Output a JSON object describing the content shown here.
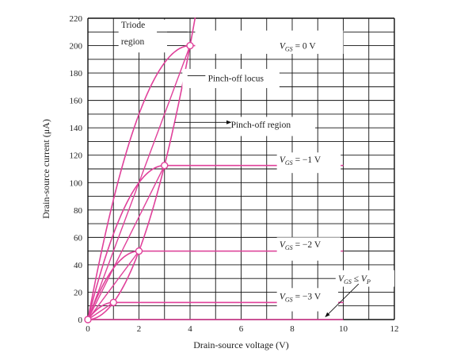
{
  "chart_data": {
    "type": "line",
    "xlabel": "Drain-source voltage (V)",
    "ylabel": "Drain-source current (μA)",
    "xlim": [
      0,
      12
    ],
    "ylim": [
      0,
      220
    ],
    "xticks": [
      0,
      2,
      4,
      6,
      8,
      10,
      12
    ],
    "yticks": [
      0,
      20,
      40,
      60,
      80,
      100,
      120,
      140,
      160,
      180,
      200,
      220
    ],
    "grid": true,
    "colors": {
      "curve": "#e0409a",
      "grid": "#111111",
      "axis": "#111111"
    },
    "series": [
      {
        "label": "V",
        "subscript": "GS",
        "rest": " = 0 V",
        "vp": 4,
        "isat": 200,
        "xmax": 10
      },
      {
        "label": "V",
        "subscript": "GS",
        "rest": " = −1 V",
        "vp": 3,
        "isat": 112.5,
        "xmax": 10
      },
      {
        "label": "V",
        "subscript": "GS",
        "rest": " = −2 V",
        "vp": 2,
        "isat": 50,
        "xmax": 10
      },
      {
        "label": "V",
        "subscript": "GS",
        "rest": " = −3 V",
        "vp": 1,
        "isat": 12.5,
        "xmax": 10
      },
      {
        "label": "V",
        "subscript": "GS",
        "rest": " ≤ ",
        "label2": "V",
        "subscript2": "P",
        "vp": 0,
        "isat": 0,
        "xmax": 10
      }
    ],
    "pinchoff_locus": {
      "x": [
        0,
        1,
        2,
        3,
        4,
        4.2
      ],
      "y": [
        0,
        12.5,
        50,
        112.5,
        200,
        220.5
      ]
    },
    "annotations": {
      "triode": [
        "Triode",
        "region"
      ],
      "pinchoff_locus": "Pinch-off locus",
      "pinchoff_region": "Pinch-off region"
    }
  }
}
